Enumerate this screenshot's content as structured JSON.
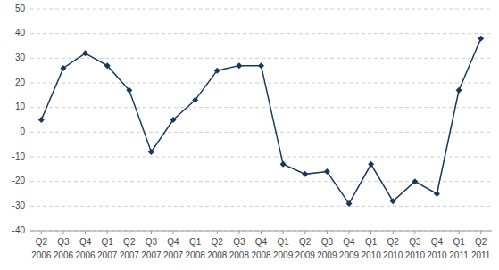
{
  "chart_data": {
    "type": "line",
    "categories": [
      "Q2",
      "Q3",
      "Q4",
      "Q1",
      "Q2",
      "Q3",
      "Q4",
      "Q1",
      "Q2",
      "Q3",
      "Q4",
      "Q1",
      "Q2",
      "Q3",
      "Q4",
      "Q1",
      "Q2",
      "Q3",
      "Q4",
      "Q1",
      "Q2"
    ],
    "annotations": [
      "2006",
      "2006",
      "2006",
      "2007",
      "2007",
      "2007",
      "2007",
      "2008",
      "2008",
      "2008",
      "2008",
      "2009",
      "2009",
      "2009",
      "2009",
      "2010",
      "2010",
      "2010",
      "2010",
      "2011",
      "2011"
    ],
    "values": [
      5,
      26,
      32,
      27,
      17,
      -8,
      5,
      13,
      25,
      27,
      27,
      -13,
      -17,
      -16,
      -29,
      -13,
      -28,
      -20,
      -25,
      17,
      38
    ],
    "color": "#17375E",
    "marker": "diamond",
    "ylim": [
      -40,
      50
    ],
    "yticks": [
      -40,
      -30,
      -20,
      -10,
      0,
      10,
      20,
      30,
      40,
      50
    ],
    "grid": true
  }
}
